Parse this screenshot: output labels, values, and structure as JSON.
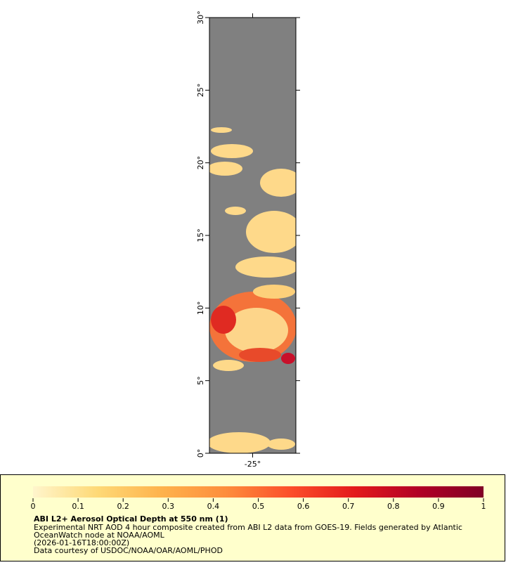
{
  "map": {
    "ylim": [
      0,
      30
    ],
    "yticks": [
      {
        "value": 0,
        "label": "0°"
      },
      {
        "value": 5,
        "label": "5°"
      },
      {
        "value": 10,
        "label": "10°"
      },
      {
        "value": 15,
        "label": "15°"
      },
      {
        "value": 20,
        "label": "20°"
      },
      {
        "value": 25,
        "label": "25°"
      },
      {
        "value": 30,
        "label": "30°"
      }
    ],
    "xlim": [
      -28,
      -22
    ],
    "xticks": [
      {
        "value": -25,
        "label": "-25°"
      }
    ]
  },
  "colorbar": {
    "lim": [
      0,
      1
    ],
    "ticks": [
      0,
      0.1,
      0.2,
      0.3,
      0.4,
      0.5,
      0.6,
      0.7,
      0.8,
      0.9,
      1
    ],
    "colors": [
      "#fff5cc",
      "#fed976",
      "#feb24c",
      "#fd8d3c",
      "#fc4e2a",
      "#e31a1c",
      "#b10026",
      "#800026"
    ]
  },
  "legend": {
    "title": "ABI L2+ Aerosol Optical Depth at 550 nm (1)",
    "lines": [
      "Experimental NRT AOD 4 hour composite created from ABI L2 data from GOES-19. Fields generated by Atlantic",
      "OceanWatch node at NOAA/AOML",
      "(2026-01-16T18:00:00Z)",
      "Data courtesy of USDOC/NOAA/OAR/AOML/PHOD"
    ]
  }
}
